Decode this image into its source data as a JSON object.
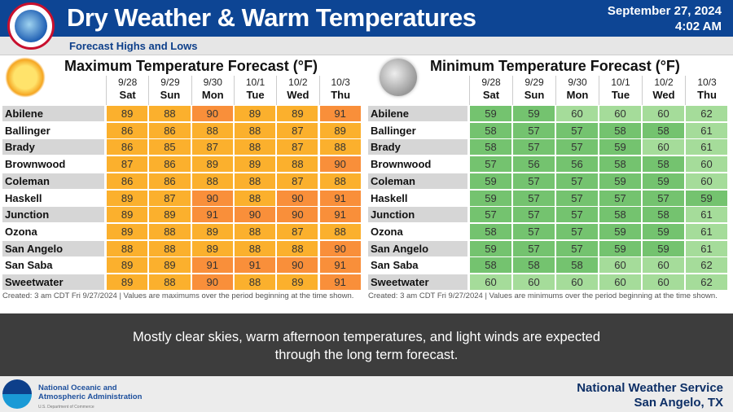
{
  "header": {
    "title": "Dry Weather & Warm Temperatures",
    "date": "September 27, 2024",
    "time": "4:02 AM",
    "subtitle": "Forecast Highs and Lows"
  },
  "days": [
    {
      "date": "9/28",
      "day": "Sat"
    },
    {
      "date": "9/29",
      "day": "Sun"
    },
    {
      "date": "9/30",
      "day": "Mon"
    },
    {
      "date": "10/1",
      "day": "Tue"
    },
    {
      "date": "10/2",
      "day": "Wed"
    },
    {
      "date": "10/3",
      "day": "Thu"
    }
  ],
  "cities": [
    "Abilene",
    "Ballinger",
    "Brady",
    "Brownwood",
    "Coleman",
    "Haskell",
    "Junction",
    "Ozona",
    "San Angelo",
    "San Saba",
    "Sweetwater"
  ],
  "max_table": {
    "title": "Maximum Temperature Forecast (°F)",
    "icon": "sun-icon",
    "colors": {
      "high": "#f98f3a",
      "normal": "#fbb02d"
    },
    "values": [
      [
        89,
        88,
        90,
        89,
        89,
        91
      ],
      [
        86,
        86,
        88,
        88,
        87,
        89
      ],
      [
        86,
        85,
        87,
        88,
        87,
        88
      ],
      [
        87,
        86,
        89,
        89,
        88,
        90
      ],
      [
        86,
        86,
        88,
        88,
        87,
        88
      ],
      [
        89,
        87,
        90,
        88,
        90,
        91
      ],
      [
        89,
        89,
        91,
        90,
        90,
        91
      ],
      [
        89,
        88,
        89,
        88,
        87,
        88
      ],
      [
        88,
        88,
        89,
        88,
        88,
        90
      ],
      [
        89,
        89,
        91,
        91,
        90,
        91
      ],
      [
        89,
        88,
        90,
        88,
        89,
        91
      ]
    ],
    "footnote": "Created: 3 am CDT Fri 9/27/2024  |  Values are maximums over the period beginning at the time shown."
  },
  "min_table": {
    "title": "Minimum Temperature Forecast (°F)",
    "icon": "moon-icon",
    "colors": {
      "low": "#74c36f",
      "normal": "#a5dc9a"
    },
    "values": [
      [
        59,
        59,
        60,
        60,
        60,
        62
      ],
      [
        58,
        57,
        57,
        58,
        58,
        61
      ],
      [
        58,
        57,
        57,
        59,
        60,
        61
      ],
      [
        57,
        56,
        56,
        58,
        58,
        60
      ],
      [
        59,
        57,
        57,
        59,
        59,
        60
      ],
      [
        59,
        57,
        57,
        57,
        57,
        59
      ],
      [
        57,
        57,
        57,
        58,
        58,
        61
      ],
      [
        58,
        57,
        57,
        59,
        59,
        61
      ],
      [
        59,
        57,
        57,
        59,
        59,
        61
      ],
      [
        58,
        58,
        58,
        60,
        60,
        62
      ],
      [
        60,
        60,
        60,
        60,
        60,
        62
      ]
    ],
    "footnote": "Created: 3 am CDT Fri 9/27/2024  |  Values are minimums over the period beginning at the time shown."
  },
  "summary": "Mostly clear skies, warm afternoon temperatures, and light winds are expected through the long term forecast.",
  "footer": {
    "noaa_line1": "National Oceanic and",
    "noaa_line2": "Atmospheric Administration",
    "noaa_dept": "U.S. Department of Commerce",
    "office": "National Weather Service",
    "location": "San Angelo, TX"
  }
}
